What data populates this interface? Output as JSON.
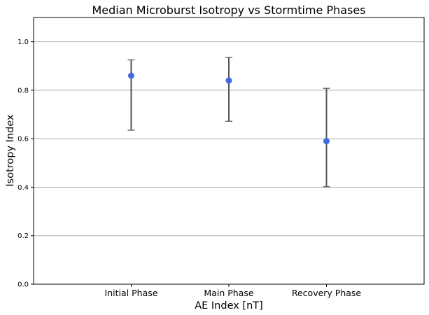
{
  "chart_data": {
    "type": "scatter",
    "title": "Median Microburst Isotropy vs Stormtime Phases",
    "xlabel": "AE Index [nT]",
    "ylabel": "Isotropy Index",
    "categories": [
      "Initial Phase",
      "Main Phase",
      "Recovery Phase"
    ],
    "series": [
      {
        "values": [
          0.86,
          0.84,
          0.59
        ],
        "lower": [
          0.635,
          0.672,
          0.402
        ],
        "upper": [
          0.925,
          0.935,
          0.808
        ]
      }
    ],
    "ylim": [
      0.0,
      1.1
    ],
    "yticks": [
      "0.0",
      "0.2",
      "0.4",
      "0.6",
      "0.8",
      "1.0"
    ],
    "grid": "horizontal",
    "colors": {
      "point": "#4169e1",
      "errorbar": "#555555",
      "grid": "#b0b0b0"
    }
  }
}
